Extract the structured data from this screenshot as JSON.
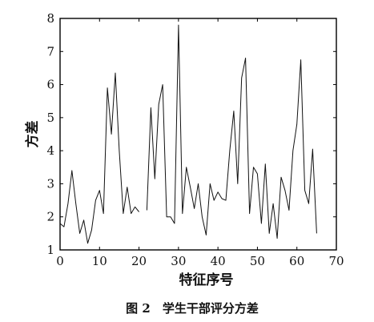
{
  "caption": "图 2　学生干部评分方差",
  "chart_data": {
    "type": "line",
    "title": "",
    "xlabel": "特征序号",
    "ylabel": "方差",
    "xlim": [
      0,
      70
    ],
    "ylim": [
      1,
      8
    ],
    "xticks": [
      0,
      10,
      20,
      30,
      40,
      50,
      60,
      70
    ],
    "yticks": [
      1,
      2,
      3,
      4,
      5,
      6,
      7,
      8
    ],
    "grid": false,
    "series": [
      {
        "segments": [
          [
            [
              0,
              1.8
            ],
            [
              1,
              1.7
            ],
            [
              2,
              2.4
            ],
            [
              3,
              3.4
            ],
            [
              4,
              2.4
            ],
            [
              5,
              1.5
            ],
            [
              6,
              1.9
            ],
            [
              7,
              1.2
            ],
            [
              8,
              1.6
            ],
            [
              9,
              2.5
            ],
            [
              10,
              2.8
            ],
            [
              11,
              2.1
            ],
            [
              12,
              5.9
            ],
            [
              13,
              4.5
            ],
            [
              14,
              6.35
            ],
            [
              15,
              4.0
            ],
            [
              16,
              2.1
            ],
            [
              17,
              2.9
            ],
            [
              18,
              2.1
            ],
            [
              19,
              2.3
            ],
            [
              20,
              2.15
            ]
          ],
          [
            [
              22,
              2.2
            ],
            [
              23,
              5.3
            ],
            [
              24,
              3.15
            ],
            [
              25,
              5.4
            ],
            [
              26,
              6.0
            ],
            [
              27,
              2.0
            ],
            [
              28,
              2.0
            ],
            [
              29,
              1.8
            ],
            [
              30,
              7.8
            ],
            [
              31,
              2.1
            ],
            [
              32,
              3.5
            ],
            [
              33,
              2.9
            ],
            [
              34,
              2.25
            ],
            [
              35,
              3.0
            ],
            [
              36,
              2.0
            ],
            [
              37,
              1.45
            ],
            [
              38,
              3.0
            ],
            [
              39,
              2.5
            ],
            [
              40,
              2.75
            ],
            [
              41,
              2.55
            ],
            [
              42,
              2.5
            ],
            [
              43,
              4.0
            ],
            [
              44,
              5.2
            ],
            [
              45,
              3.0
            ],
            [
              46,
              6.2
            ],
            [
              47,
              6.8
            ],
            [
              48,
              2.1
            ],
            [
              49,
              3.5
            ],
            [
              50,
              3.3
            ],
            [
              51,
              1.8
            ],
            [
              52,
              3.6
            ],
            [
              53,
              1.5
            ],
            [
              54,
              2.4
            ],
            [
              55,
              1.35
            ],
            [
              56,
              3.2
            ],
            [
              57,
              2.8
            ],
            [
              58,
              2.2
            ],
            [
              59,
              4.0
            ],
            [
              60,
              4.8
            ],
            [
              61,
              6.75
            ],
            [
              62,
              2.8
            ],
            [
              63,
              2.4
            ],
            [
              64,
              4.05
            ],
            [
              65,
              1.5
            ]
          ]
        ]
      }
    ]
  }
}
